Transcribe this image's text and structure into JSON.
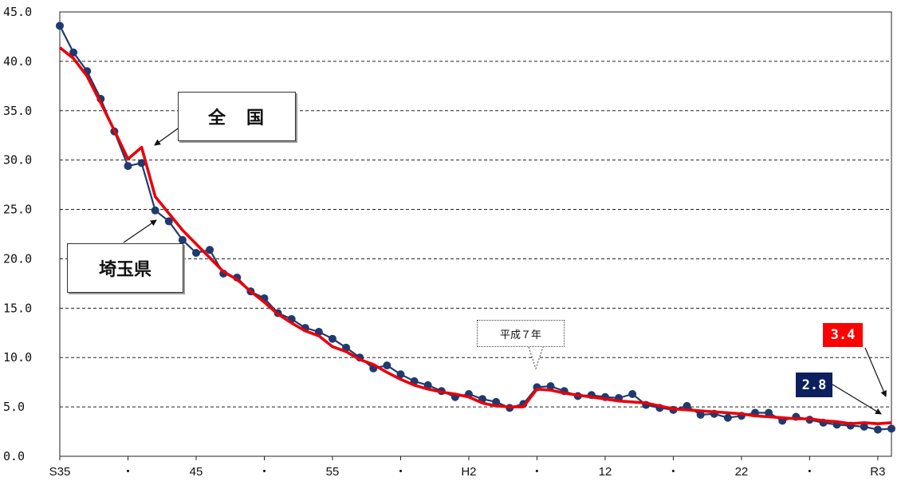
{
  "chart_data": {
    "type": "line",
    "ylim": [
      0,
      45
    ],
    "y_ticks": [
      "0.0",
      "5.0",
      "10.0",
      "15.0",
      "20.0",
      "25.0",
      "30.0",
      "35.0",
      "40.0",
      "45.0"
    ],
    "x_tick_labels": [
      "S35",
      "・",
      "45",
      "・",
      "55",
      "・",
      "H2",
      "・",
      "12",
      "・",
      "22",
      "・",
      "R3"
    ],
    "grid": "horizontal-dashed",
    "x": [
      1960,
      1961,
      1962,
      1963,
      1964,
      1965,
      1966,
      1967,
      1968,
      1969,
      1970,
      1971,
      1972,
      1973,
      1974,
      1975,
      1976,
      1977,
      1978,
      1979,
      1980,
      1981,
      1982,
      1983,
      1984,
      1985,
      1986,
      1987,
      1988,
      1989,
      1990,
      1991,
      1992,
      1993,
      1994,
      1995,
      1996,
      1997,
      1998,
      1999,
      2000,
      2001,
      2002,
      2003,
      2004,
      2005,
      2006,
      2007,
      2008,
      2009,
      2010,
      2011,
      2012,
      2013,
      2014,
      2015,
      2016,
      2017,
      2018,
      2019,
      2020,
      2021
    ],
    "series": [
      {
        "name": "埼玉県",
        "color": "#1f3a6e",
        "marker": "circle",
        "values": [
          43.6,
          40.9,
          39.0,
          36.2,
          32.9,
          29.4,
          29.7,
          24.9,
          23.8,
          21.9,
          20.6,
          20.9,
          18.5,
          18.1,
          16.7,
          16.0,
          14.5,
          13.9,
          13.0,
          12.6,
          11.9,
          11.0,
          10.0,
          8.9,
          9.2,
          8.3,
          7.6,
          7.2,
          6.6,
          6.0,
          6.3,
          5.8,
          5.5,
          4.9,
          5.3,
          7.0,
          7.1,
          6.6,
          6.1,
          6.2,
          6.0,
          5.9,
          6.3,
          5.2,
          4.9,
          4.7,
          5.1,
          4.2,
          4.3,
          3.9,
          4.1,
          4.4,
          4.4,
          3.6,
          4.0,
          3.7,
          3.4,
          3.2,
          3.1,
          3.0,
          2.7,
          2.8
        ]
      },
      {
        "name": "全国",
        "color": "#e8000b",
        "marker": "none",
        "values": [
          41.4,
          40.3,
          38.5,
          35.8,
          33.0,
          30.1,
          31.3,
          26.3,
          24.6,
          22.9,
          21.5,
          20.1,
          18.7,
          17.9,
          16.7,
          15.6,
          14.4,
          13.5,
          12.7,
          12.2,
          11.1,
          10.6,
          9.8,
          9.3,
          8.5,
          7.8,
          7.2,
          6.8,
          6.5,
          6.3,
          6.0,
          5.4,
          5.1,
          5.0,
          5.0,
          6.8,
          6.7,
          6.4,
          6.2,
          6.0,
          5.8,
          5.6,
          5.5,
          5.4,
          5.1,
          4.8,
          4.7,
          4.6,
          4.5,
          4.4,
          4.3,
          4.1,
          4.0,
          3.9,
          3.8,
          3.8,
          3.6,
          3.5,
          3.3,
          3.4,
          3.3,
          3.4
        ]
      }
    ],
    "annotations": {
      "national_label": "全　国",
      "saitama_label": "埼玉県",
      "heisei7_label": "平成７年",
      "national_last_value": "3.4",
      "saitama_last_value": "2.8"
    }
  }
}
